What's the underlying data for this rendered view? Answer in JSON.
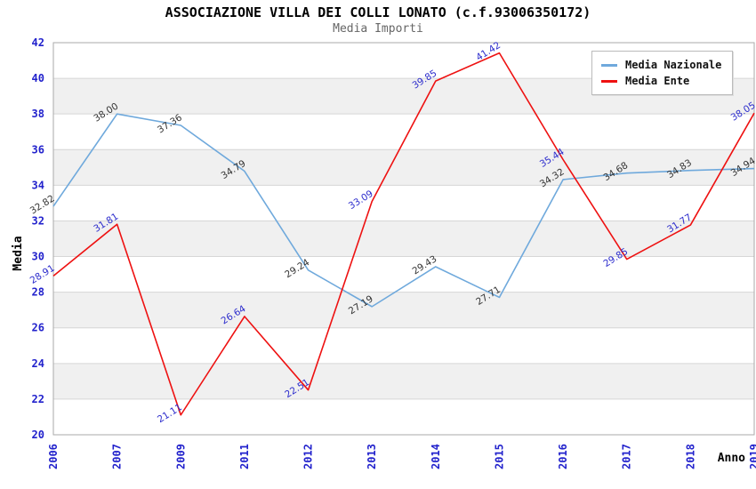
{
  "header": {
    "title": "ASSOCIAZIONE VILLA DEI COLLI LONATO (c.f.93006350172)",
    "subtitle": "Media Importi"
  },
  "legend": {
    "items": [
      {
        "label": "Media Nazionale",
        "color": "#6fa9dc"
      },
      {
        "label": "Media Ente",
        "color": "#ee1111"
      }
    ]
  },
  "chart_data": {
    "type": "line",
    "title": "ASSOCIAZIONE VILLA DEI COLLI LONATO (c.f.93006350172)",
    "subtitle": "Media Importi",
    "x": [
      "2006",
      "2007",
      "2009",
      "2011",
      "2012",
      "2013",
      "2014",
      "2015",
      "2016",
      "2017",
      "2018",
      "2019"
    ],
    "series": [
      {
        "name": "Media Nazionale",
        "color": "#6fa9dc",
        "label_color": "#333333",
        "values": [
          32.82,
          38.0,
          37.36,
          34.79,
          29.24,
          27.19,
          29.43,
          27.71,
          34.32,
          34.68,
          34.83,
          34.94
        ]
      },
      {
        "name": "Media Ente",
        "color": "#ee1111",
        "label_color": "#2b2bcc",
        "values": [
          28.91,
          31.81,
          21.11,
          26.64,
          22.51,
          33.09,
          39.85,
          41.42,
          35.44,
          29.85,
          31.77,
          38.05
        ]
      }
    ],
    "xlabel": "Anno",
    "ylabel": "Media",
    "ylim": [
      20,
      42
    ],
    "ytick_step": 2,
    "grid": "horizontal-bands-alternating",
    "legend_position": "top-right",
    "colors": {
      "tick": "#2222cc",
      "band": "#f0f0f0",
      "gridline": "#d6d6d6",
      "border": "#aaaaaa"
    }
  }
}
